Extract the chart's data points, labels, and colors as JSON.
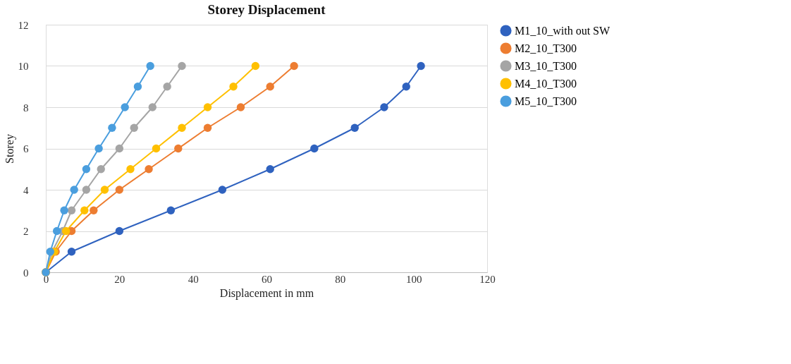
{
  "chart_data": {
    "type": "line",
    "title": "Storey Displacement",
    "xlabel": "Displacement in mm",
    "ylabel": "Storey",
    "xlim": [
      0,
      120
    ],
    "xticks": [
      0,
      20,
      40,
      60,
      80,
      100,
      120
    ],
    "ylim": [
      0,
      12
    ],
    "yticks": [
      0,
      2,
      4,
      6,
      8,
      10,
      12
    ],
    "grid": "y",
    "legend": "right",
    "marker": "circle",
    "line_style": "solid",
    "series": [
      {
        "name": "M1_10_with out SW",
        "color": "#2f62bf",
        "x": [
          0,
          7,
          20,
          34,
          48,
          61,
          73,
          84,
          92,
          98,
          102
        ],
        "values": [
          0,
          1,
          2,
          3,
          4,
          5,
          6,
          7,
          8,
          9,
          10
        ]
      },
      {
        "name": "M2_10_T300",
        "color": "#ed7d31",
        "x": [
          0,
          2.7,
          7,
          13,
          20,
          28,
          36,
          44,
          53,
          61,
          67.5
        ],
        "values": [
          0,
          1,
          2,
          3,
          4,
          5,
          6,
          7,
          8,
          9,
          10
        ]
      },
      {
        "name": "M3_10_T300",
        "color": "#a5a5a5",
        "x": [
          0,
          1.7,
          4.6,
          7,
          11,
          15,
          20,
          24,
          29,
          33,
          37
        ],
        "values": [
          0,
          1,
          2,
          3,
          4,
          5,
          6,
          7,
          8,
          9,
          10
        ]
      },
      {
        "name": "M4_10_T300",
        "color": "#ffc000",
        "x": [
          0,
          2.3,
          5.5,
          10.5,
          16,
          23,
          30,
          37,
          44,
          51,
          57
        ],
        "values": [
          0,
          1,
          2,
          3,
          4,
          5,
          6,
          7,
          8,
          9,
          10
        ]
      },
      {
        "name": "M5_10_T300",
        "color": "#4a9ede",
        "x": [
          0,
          1.2,
          3,
          5,
          7.7,
          11,
          14.4,
          18,
          21.5,
          25,
          28.4
        ],
        "values": [
          0,
          1,
          2,
          3,
          4,
          5,
          6,
          7,
          8,
          9,
          10
        ]
      }
    ]
  }
}
